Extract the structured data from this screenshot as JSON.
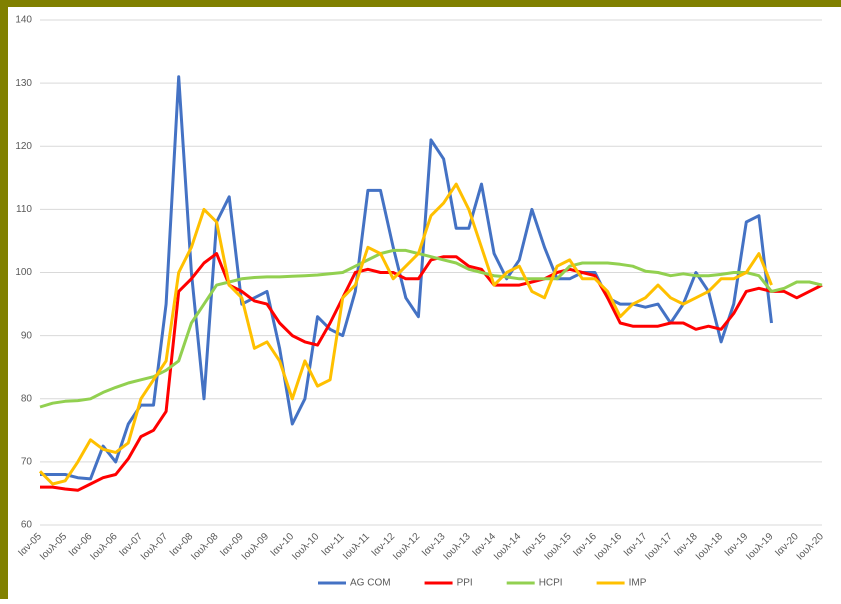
{
  "chart_data": {
    "type": "line",
    "categories": [
      "Ιαν-05",
      null,
      "Ιουλ-05",
      null,
      "Ιαν-06",
      null,
      "Ιουλ-06",
      null,
      "Ιαν-07",
      null,
      "Ιουλ-07",
      null,
      "Ιαν-08",
      null,
      "Ιουλ-08",
      null,
      "Ιαν-09",
      null,
      "Ιουλ-09",
      null,
      "Ιαν-10",
      null,
      "Ιουλ-10",
      null,
      "Ιαν-11",
      null,
      "Ιουλ-11",
      null,
      "Ιαν-12",
      null,
      "Ιουλ-12",
      null,
      "Ιαν-13",
      null,
      "Ιουλ-13",
      null,
      "Ιαν-14",
      null,
      "Ιουλ-14",
      null,
      "Ιαν-15",
      null,
      "Ιουλ-15",
      null,
      "Ιαν-16",
      null,
      "Ιουλ-16",
      null,
      "Ιαν-17",
      null,
      "Ιουλ-17",
      null,
      "Ιαν-18",
      null,
      "Ιουλ-18",
      null,
      "Ιαν-19",
      null,
      "Ιουλ-19",
      null,
      "Ιαν-20",
      null,
      "Ιουλ-20"
    ],
    "series": [
      {
        "name": "AG COM",
        "color": "#4472c4",
        "values": [
          68,
          68,
          68,
          67.5,
          67.3,
          72.5,
          70,
          76,
          79,
          79,
          95,
          131,
          100,
          80,
          108,
          112,
          95,
          96,
          97,
          88,
          76,
          80,
          93,
          91,
          90,
          97,
          113,
          113,
          104,
          96,
          93,
          121,
          118,
          107,
          107,
          114,
          103,
          99,
          102,
          110,
          104,
          99,
          99,
          100,
          100,
          96,
          95,
          95,
          94.5,
          95,
          92,
          95,
          100,
          97,
          89,
          95,
          108,
          109,
          92,
          null,
          null,
          null,
          null
        ]
      },
      {
        "name": "PPI",
        "color": "#ff0000",
        "values": [
          66,
          66,
          65.7,
          65.5,
          66.5,
          67.5,
          68,
          70.5,
          74,
          75,
          78,
          97,
          99,
          101.5,
          103,
          98,
          97,
          95.5,
          95,
          92,
          90,
          89,
          88.5,
          92,
          96,
          100,
          100.5,
          100,
          100,
          99,
          99,
          102,
          102.5,
          102.5,
          101,
          100.5,
          98,
          98,
          98,
          98.5,
          99,
          100,
          100.5,
          100,
          99.5,
          96,
          92,
          91.5,
          91.5,
          91.5,
          92,
          92,
          91,
          91.5,
          91,
          93.5,
          97,
          97.5,
          97,
          97,
          96,
          97,
          98
        ]
      },
      {
        "name": "HCPI",
        "color": "#92d050",
        "values": [
          78.7,
          79.3,
          79.6,
          79.7,
          80,
          81,
          81.8,
          82.5,
          83,
          83.5,
          84.5,
          86,
          92,
          95,
          98,
          98.5,
          99,
          99.2,
          99.3,
          99.3,
          99.4,
          99.5,
          99.6,
          99.8,
          100,
          101,
          102,
          103,
          103.5,
          103.5,
          103,
          102.5,
          102,
          101.5,
          100.5,
          100,
          99.5,
          99.3,
          99,
          99,
          99,
          99,
          101,
          101.5,
          101.5,
          101.5,
          101.3,
          101,
          100.2,
          100,
          99.5,
          99.8,
          99.5,
          99.5,
          99.7,
          100,
          100,
          99.5,
          97,
          97.5,
          98.5,
          98.5,
          98
        ]
      },
      {
        "name": "IMP",
        "color": "#ffc000",
        "values": [
          68.5,
          66.5,
          67,
          70,
          73.5,
          72,
          71.5,
          73,
          80,
          83,
          86,
          100,
          104,
          110,
          108,
          98,
          96,
          88,
          89,
          86,
          80,
          86,
          82,
          83,
          96,
          98,
          104,
          103,
          99,
          101,
          103,
          109,
          111,
          114,
          110,
          104,
          98,
          100,
          101,
          97,
          96,
          101,
          102,
          99,
          99,
          97,
          93,
          95,
          96,
          98,
          96,
          95,
          96,
          97,
          99,
          99,
          100,
          103,
          98,
          null,
          null,
          null,
          null
        ]
      }
    ],
    "ylim": [
      60,
      140
    ],
    "yticks": [
      60,
      70,
      80,
      90,
      100,
      110,
      120,
      130,
      140
    ],
    "grid": true,
    "legend": "bottom"
  }
}
